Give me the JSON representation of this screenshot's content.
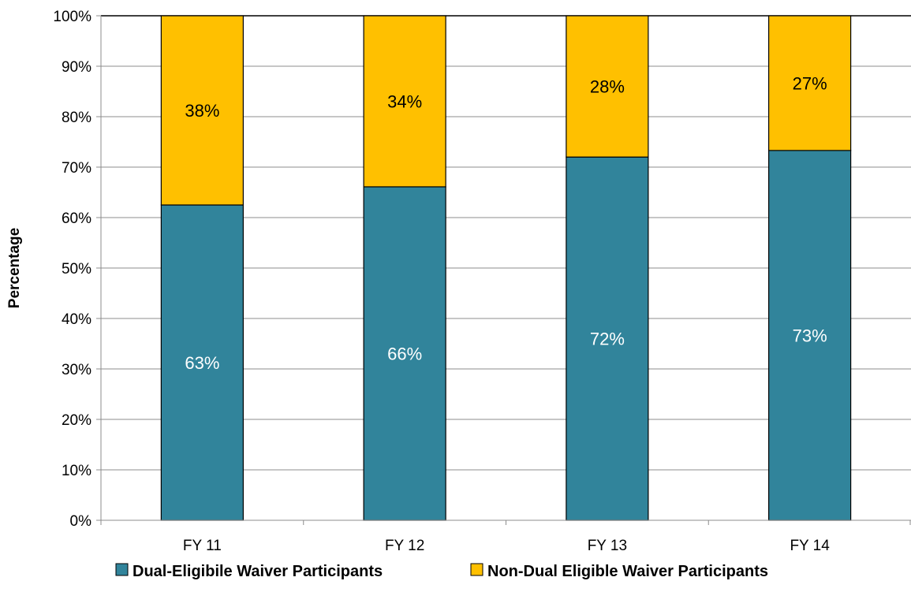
{
  "chart_data": {
    "type": "bar",
    "stacked": true,
    "categories": [
      "FY 11",
      "FY 12",
      "FY 13",
      "FY 14"
    ],
    "series": [
      {
        "name": "Dual-Eligibile Waiver Participants",
        "color": "#31849B",
        "label_color": "#ffffff",
        "values": [
          62.5,
          66.1,
          72.0,
          73.3
        ],
        "labels": [
          "63%",
          "66%",
          "72%",
          "73%"
        ]
      },
      {
        "name": "Non-Dual Eligible Waiver Participants",
        "color": "#FFC000",
        "label_color": "#000000",
        "values": [
          37.5,
          33.9,
          28.0,
          26.7
        ],
        "labels": [
          "38%",
          "34%",
          "28%",
          "27%"
        ]
      }
    ],
    "ylabel": "Percentage",
    "xlabel": "",
    "ylim": [
      0,
      100
    ],
    "yticks": [
      0,
      10,
      20,
      30,
      40,
      50,
      60,
      70,
      80,
      90,
      100
    ],
    "ytick_labels": [
      "0%",
      "10%",
      "20%",
      "30%",
      "40%",
      "50%",
      "60%",
      "70%",
      "80%",
      "90%",
      "100%"
    ],
    "grid": true,
    "legend": "bottom"
  }
}
